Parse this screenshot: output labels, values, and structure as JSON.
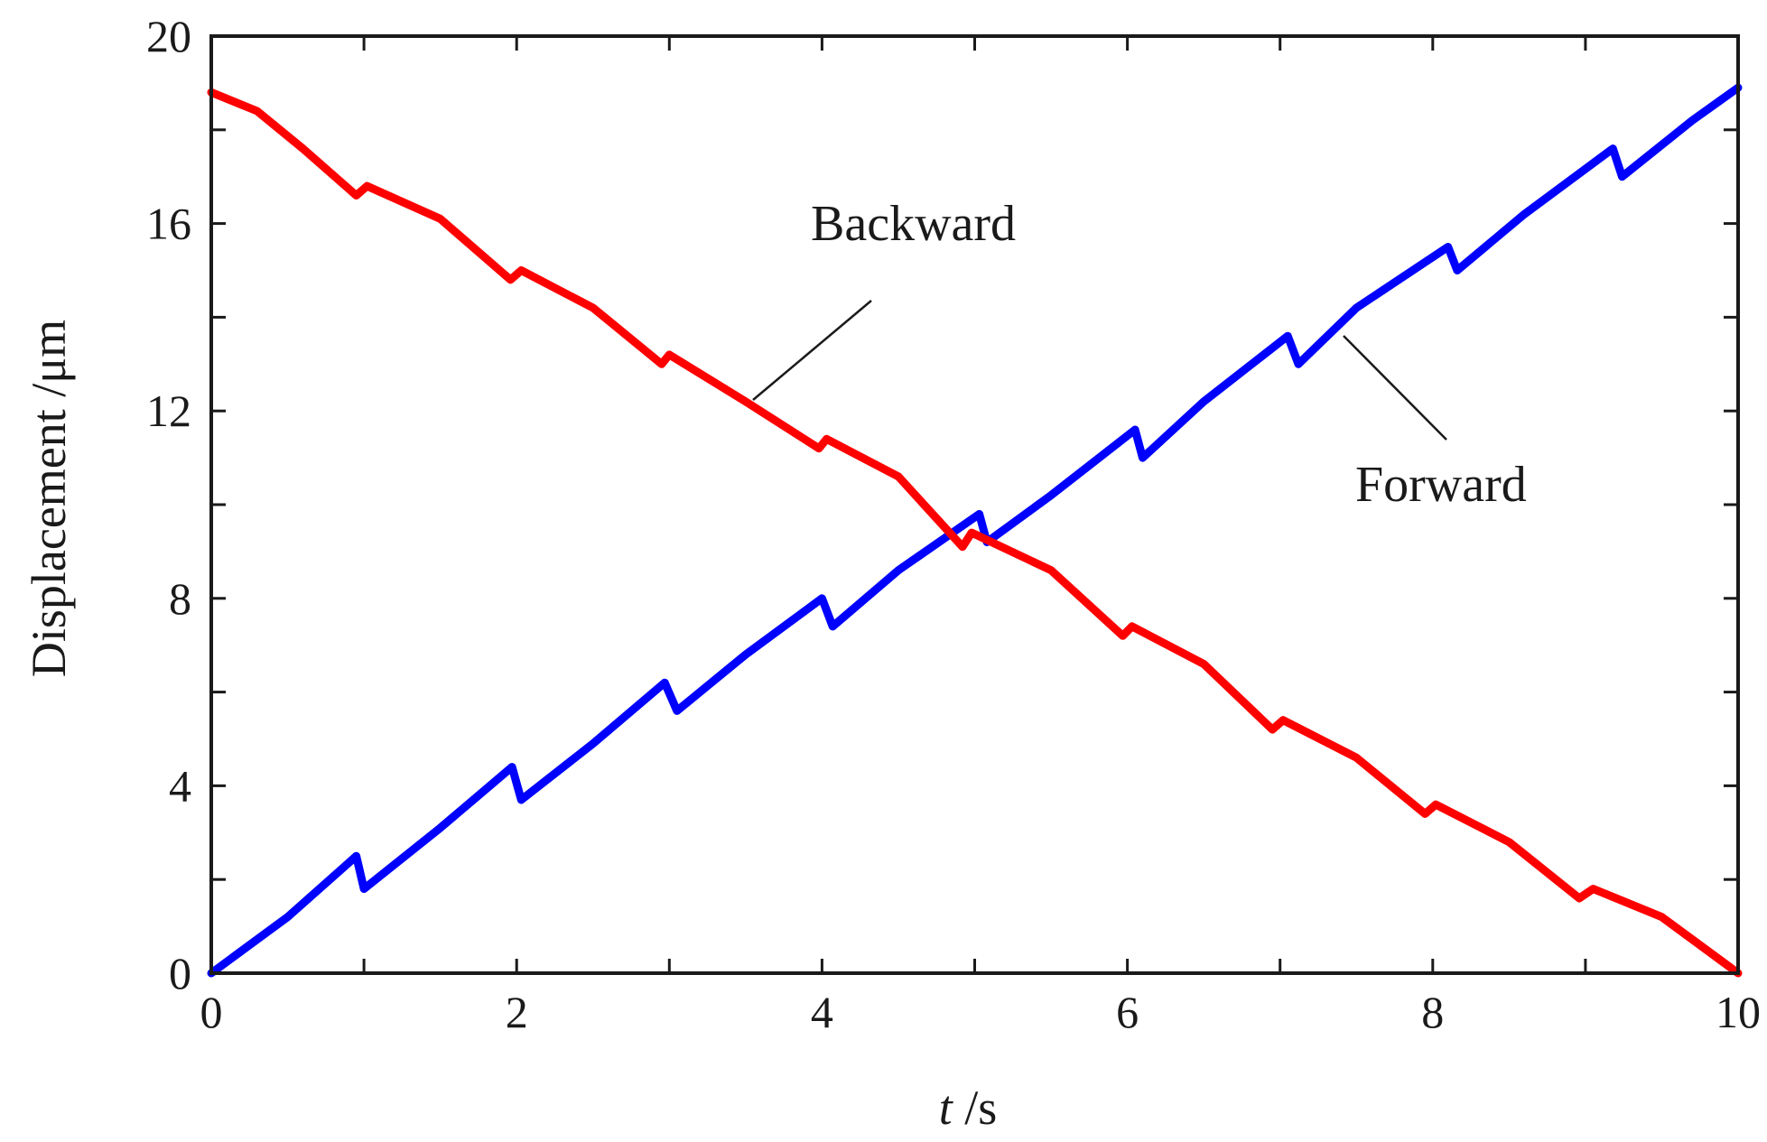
{
  "chart_data": {
    "type": "line",
    "xlabel": {
      "var": "t",
      "unit": " /s"
    },
    "ylabel": "Displacement /μm",
    "xlim": [
      0,
      10
    ],
    "ylim": [
      0,
      20
    ],
    "xticks": [
      "0",
      "2",
      "4",
      "6",
      "8",
      "10"
    ],
    "yticks": [
      "0",
      "4",
      "8",
      "12",
      "16",
      "20"
    ],
    "x_minor_step": 1,
    "y_minor_step": 2,
    "grid": false,
    "annotations": [
      {
        "text": "Backward",
        "series": "backward"
      },
      {
        "text": "Forward",
        "series": "forward"
      }
    ],
    "series": [
      {
        "key": "forward",
        "color": "#0000ff",
        "points": [
          [
            0,
            0
          ],
          [
            0.5,
            1.2
          ],
          [
            0.95,
            2.5
          ],
          [
            1.0,
            1.8
          ],
          [
            1.5,
            3.1
          ],
          [
            1.97,
            4.4
          ],
          [
            2.03,
            3.7
          ],
          [
            2.5,
            4.9
          ],
          [
            2.97,
            6.2
          ],
          [
            3.05,
            5.6
          ],
          [
            3.5,
            6.8
          ],
          [
            4.0,
            8.0
          ],
          [
            4.07,
            7.4
          ],
          [
            4.5,
            8.6
          ],
          [
            5.03,
            9.8
          ],
          [
            5.08,
            9.2
          ],
          [
            5.5,
            10.2
          ],
          [
            6.05,
            11.6
          ],
          [
            6.1,
            11.0
          ],
          [
            6.5,
            12.2
          ],
          [
            7.05,
            13.6
          ],
          [
            7.12,
            13.0
          ],
          [
            7.5,
            14.2
          ],
          [
            8.1,
            15.5
          ],
          [
            8.16,
            15.0
          ],
          [
            8.6,
            16.2
          ],
          [
            9.18,
            17.6
          ],
          [
            9.24,
            17.0
          ],
          [
            9.7,
            18.2
          ],
          [
            10,
            18.9
          ]
        ]
      },
      {
        "key": "backward",
        "color": "#ff0000",
        "points": [
          [
            0,
            18.8
          ],
          [
            0.3,
            18.4
          ],
          [
            0.6,
            17.6
          ],
          [
            0.95,
            16.6
          ],
          [
            1.02,
            16.8
          ],
          [
            1.5,
            16.1
          ],
          [
            1.96,
            14.8
          ],
          [
            2.03,
            15.0
          ],
          [
            2.5,
            14.2
          ],
          [
            2.95,
            13.0
          ],
          [
            3.0,
            13.2
          ],
          [
            3.5,
            12.2
          ],
          [
            3.98,
            11.2
          ],
          [
            4.03,
            11.4
          ],
          [
            4.5,
            10.6
          ],
          [
            4.92,
            9.1
          ],
          [
            4.98,
            9.4
          ],
          [
            5.5,
            8.6
          ],
          [
            5.97,
            7.2
          ],
          [
            6.03,
            7.4
          ],
          [
            6.5,
            6.6
          ],
          [
            6.95,
            5.2
          ],
          [
            7.02,
            5.4
          ],
          [
            7.5,
            4.6
          ],
          [
            7.95,
            3.4
          ],
          [
            8.02,
            3.6
          ],
          [
            8.5,
            2.8
          ],
          [
            8.96,
            1.6
          ],
          [
            9.05,
            1.8
          ],
          [
            9.5,
            1.2
          ],
          [
            10,
            0
          ]
        ]
      }
    ]
  }
}
